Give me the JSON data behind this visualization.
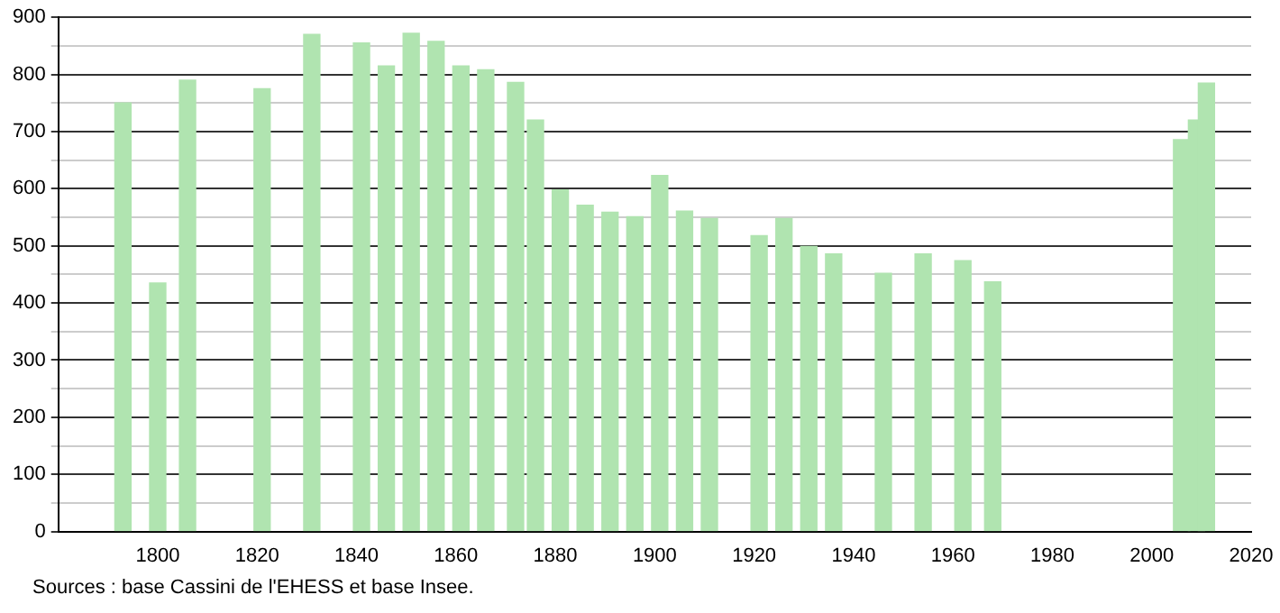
{
  "chart_data": {
    "type": "bar",
    "x": [
      1793,
      1800,
      1806,
      1821,
      1831,
      1841,
      1846,
      1851,
      1856,
      1861,
      1866,
      1872,
      1876,
      1881,
      1886,
      1891,
      1896,
      1901,
      1906,
      1911,
      1921,
      1926,
      1931,
      1936,
      1946,
      1954,
      1962,
      1968,
      2006,
      2009,
      2011
    ],
    "values": [
      750,
      435,
      790,
      775,
      870,
      855,
      815,
      872,
      858,
      815,
      808,
      786,
      720,
      598,
      571,
      559,
      551,
      623,
      561,
      548,
      518,
      548,
      499,
      486,
      452,
      486,
      474,
      437,
      686,
      720,
      785
    ],
    "color": "#b0e4b0",
    "xlim": [
      1780,
      2020
    ],
    "xticks": [
      1800,
      1820,
      1840,
      1860,
      1880,
      1900,
      1920,
      1940,
      1960,
      1980,
      2000,
      2020
    ],
    "ylim": [
      0,
      900
    ],
    "yticks": [
      0,
      {
        "value": 50,
        "label": null
      },
      100,
      {
        "value": 150,
        "label": null
      },
      200,
      {
        "value": 250,
        "label": null
      },
      300,
      {
        "value": 350,
        "label": null
      },
      400,
      {
        "value": 450,
        "label": null
      },
      500,
      {
        "value": 550,
        "label": null
      },
      600,
      {
        "value": 650,
        "label": null
      },
      700,
      {
        "value": 750,
        "label": null
      },
      800,
      {
        "value": 850,
        "label": null
      },
      900
    ],
    "grid": "y",
    "legend": false,
    "annotations": [
      "Sources : base Cassini de l'EHESS et base Insee."
    ]
  }
}
